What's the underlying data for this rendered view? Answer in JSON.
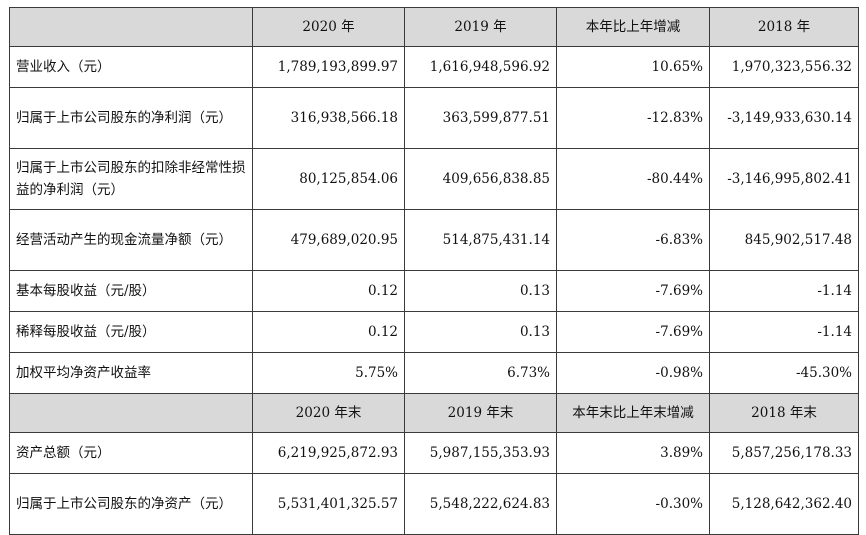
{
  "table1": {
    "headers": [
      "2020 年",
      "2019 年",
      "本年比上年增减",
      "2018 年"
    ],
    "rows": [
      {
        "label": "营业收入（元）",
        "v2020": "1,789,193,899.97",
        "v2019": "1,616,948,596.92",
        "change": "10.65%",
        "v2018": "1,970,323,556.32"
      },
      {
        "label": "归属于上市公司股东的净利润（元）",
        "v2020": "316,938,566.18",
        "v2019": "363,599,877.51",
        "change": "-12.83%",
        "v2018": "-3,149,933,630.14"
      },
      {
        "label": "归属于上市公司股东的扣除非经常性损益的净利润（元）",
        "v2020": "80,125,854.06",
        "v2019": "409,656,838.85",
        "change": "-80.44%",
        "v2018": "-3,146,995,802.41"
      },
      {
        "label": "经营活动产生的现金流量净额（元）",
        "v2020": "479,689,020.95",
        "v2019": "514,875,431.14",
        "change": "-6.83%",
        "v2018": "845,902,517.48"
      },
      {
        "label": "基本每股收益（元/股）",
        "v2020": "0.12",
        "v2019": "0.13",
        "change": "-7.69%",
        "v2018": "-1.14"
      },
      {
        "label": "稀释每股收益（元/股）",
        "v2020": "0.12",
        "v2019": "0.13",
        "change": "-7.69%",
        "v2018": "-1.14"
      },
      {
        "label": "加权平均净资产收益率",
        "v2020": "5.75%",
        "v2019": "6.73%",
        "change": "-0.98%",
        "v2018": "-45.30%"
      }
    ]
  },
  "table2": {
    "headers": [
      "2020 年末",
      "2019 年末",
      "本年末比上年末增减",
      "2018 年末"
    ],
    "rows": [
      {
        "label": "资产总额（元）",
        "v2020": "6,219,925,872.93",
        "v2019": "5,987,155,353.93",
        "change": "3.89%",
        "v2018": "5,857,256,178.33"
      },
      {
        "label": "归属于上市公司股东的净资产（元）",
        "v2020": "5,531,401,325.57",
        "v2019": "5,548,222,624.83",
        "change": "-0.30%",
        "v2018": "5,128,642,362.40"
      }
    ]
  }
}
